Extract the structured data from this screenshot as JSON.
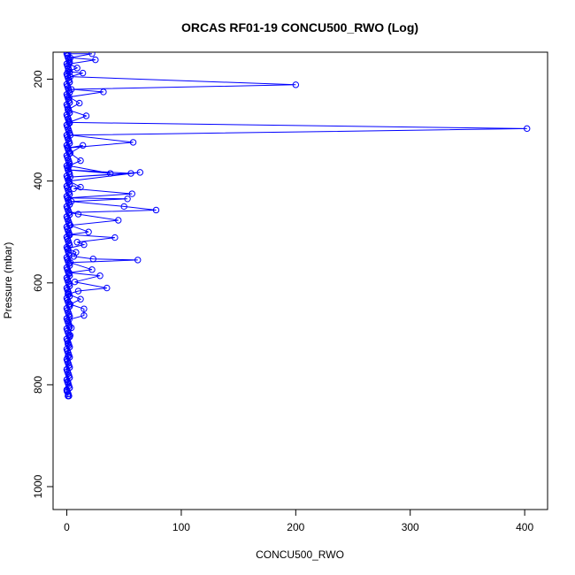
{
  "chart_data": {
    "type": "scatter",
    "title": "ORCAS RF01-19 CONCU500_RWO (Log)",
    "xlabel": "CONCU500_RWO",
    "ylabel": "Pressure (mbar)",
    "xlim": [
      -12,
      420
    ],
    "ylim": [
      1045,
      147
    ],
    "y_reversed": true,
    "x_ticks": [
      0,
      100,
      200,
      300,
      400
    ],
    "y_ticks": [
      200,
      400,
      600,
      800,
      1000
    ],
    "grid": false,
    "legend": "none",
    "color": "#0000ff",
    "series": [
      {
        "values": [
          {
            "x": 1,
            "y": 150
          },
          {
            "x": 22,
            "y": 150
          },
          {
            "x": 3,
            "y": 158
          },
          {
            "x": 25,
            "y": 162
          },
          {
            "x": 2,
            "y": 170
          },
          {
            "x": 9,
            "y": 178
          },
          {
            "x": 1,
            "y": 185
          },
          {
            "x": 14,
            "y": 188
          },
          {
            "x": 3,
            "y": 195
          },
          {
            "x": 200,
            "y": 211
          },
          {
            "x": 4,
            "y": 220
          },
          {
            "x": 32,
            "y": 225
          },
          {
            "x": 2,
            "y": 235
          },
          {
            "x": 11,
            "y": 247
          },
          {
            "x": 1,
            "y": 260
          },
          {
            "x": 17,
            "y": 272
          },
          {
            "x": 2,
            "y": 285
          },
          {
            "x": 402,
            "y": 297
          },
          {
            "x": 3,
            "y": 310
          },
          {
            "x": 58,
            "y": 324
          },
          {
            "x": 1,
            "y": 335
          },
          {
            "x": 14,
            "y": 330
          },
          {
            "x": 3,
            "y": 345
          },
          {
            "x": 12,
            "y": 360
          },
          {
            "x": 2,
            "y": 370
          },
          {
            "x": 38,
            "y": 385
          },
          {
            "x": 1,
            "y": 378
          },
          {
            "x": 56,
            "y": 385
          },
          {
            "x": 3,
            "y": 392
          },
          {
            "x": 64,
            "y": 383
          },
          {
            "x": 2,
            "y": 400
          },
          {
            "x": 12,
            "y": 412
          },
          {
            "x": 6,
            "y": 415
          },
          {
            "x": 57,
            "y": 425
          },
          {
            "x": 1,
            "y": 433
          },
          {
            "x": 53,
            "y": 435
          },
          {
            "x": 4,
            "y": 440
          },
          {
            "x": 50,
            "y": 450
          },
          {
            "x": 78,
            "y": 457
          },
          {
            "x": 2,
            "y": 462
          },
          {
            "x": 10,
            "y": 465
          },
          {
            "x": 45,
            "y": 477
          },
          {
            "x": 3,
            "y": 487
          },
          {
            "x": 19,
            "y": 500
          },
          {
            "x": 2,
            "y": 505
          },
          {
            "x": 42,
            "y": 511
          },
          {
            "x": 9,
            "y": 520
          },
          {
            "x": 15,
            "y": 525
          },
          {
            "x": 1,
            "y": 532
          },
          {
            "x": 8,
            "y": 540
          },
          {
            "x": 6,
            "y": 548
          },
          {
            "x": 23,
            "y": 553
          },
          {
            "x": 62,
            "y": 555
          },
          {
            "x": 3,
            "y": 560
          },
          {
            "x": 22,
            "y": 574
          },
          {
            "x": 2,
            "y": 580
          },
          {
            "x": 29,
            "y": 586
          },
          {
            "x": 7,
            "y": 598
          },
          {
            "x": 35,
            "y": 610
          },
          {
            "x": 10,
            "y": 616
          },
          {
            "x": 1,
            "y": 622
          },
          {
            "x": 12,
            "y": 632
          },
          {
            "x": 3,
            "y": 642
          },
          {
            "x": 15,
            "y": 651
          },
          {
            "x": 15,
            "y": 664
          },
          {
            "x": 2,
            "y": 672
          },
          {
            "x": 4,
            "y": 688
          },
          {
            "x": 3,
            "y": 703
          },
          {
            "x": 1,
            "y": 720
          },
          {
            "x": 1,
            "y": 745
          },
          {
            "x": 0,
            "y": 770
          },
          {
            "x": 1,
            "y": 795
          },
          {
            "x": 0,
            "y": 812
          },
          {
            "x": 1,
            "y": 822
          }
        ]
      }
    ]
  }
}
